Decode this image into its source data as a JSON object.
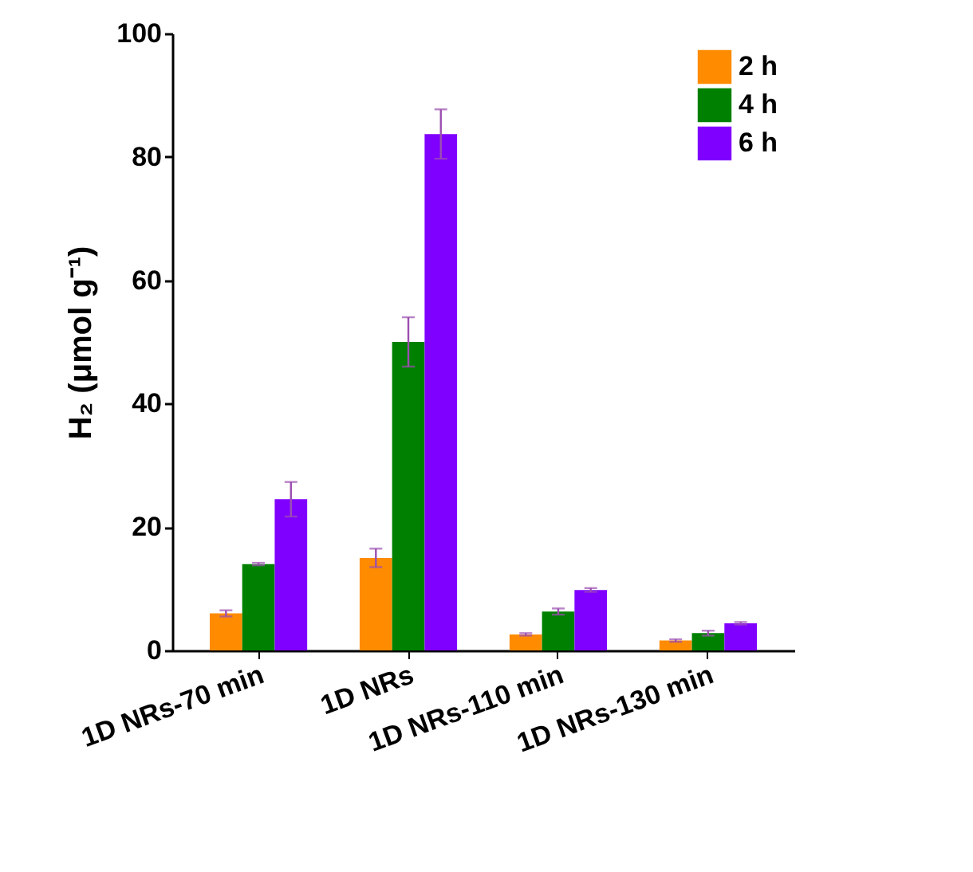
{
  "chart_data": {
    "type": "bar",
    "ylabel": "H₂ (μmol g⁻¹)",
    "categories": [
      "1D NRs-70 min",
      "1D NRs",
      "1D NRs-110 min",
      "1D NRs-130 min"
    ],
    "series": [
      {
        "name": "2 h",
        "color": "#ff8c00",
        "values": [
          6,
          15,
          2.6,
          1.6
        ],
        "errors": [
          0.5,
          1.5,
          0.2,
          0.2
        ]
      },
      {
        "name": "4 h",
        "color": "#008000",
        "values": [
          14,
          50,
          6.3,
          2.8
        ],
        "errors": [
          0.2,
          4,
          0.5,
          0.4
        ]
      },
      {
        "name": "6 h",
        "color": "#8000ff",
        "values": [
          24.5,
          83.7,
          9.8,
          4.4
        ],
        "errors": [
          2.8,
          4,
          0.3,
          0.2
        ]
      }
    ],
    "ylim": [
      0,
      100
    ],
    "yticks": [
      0,
      20,
      40,
      60,
      80,
      100
    ],
    "grid": false,
    "legend": "top right"
  }
}
